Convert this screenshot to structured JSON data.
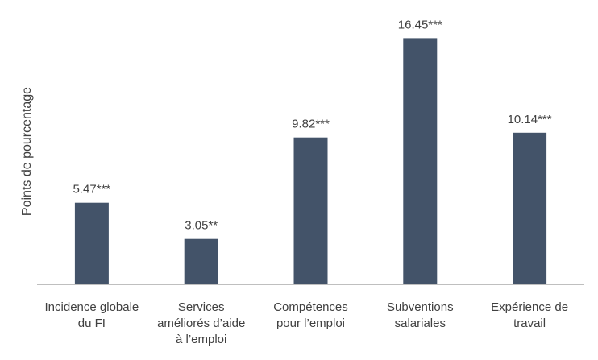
{
  "chart_data": {
    "type": "bar",
    "title": "",
    "xlabel": "",
    "ylabel": "Points de pourcentage",
    "ylim": [
      0,
      18
    ],
    "grid": false,
    "legend": "none",
    "bar_color": "#435369",
    "axis_color": "#bfbfbf",
    "text_color": "#404040",
    "categories": [
      [
        "Incidence globale",
        "du FI"
      ],
      [
        "Services",
        "améliorés d’aide",
        "à l’emploi"
      ],
      [
        "Compétences",
        "pour l’emploi"
      ],
      [
        "Subventions",
        "salariales"
      ],
      [
        "Expérience de",
        "travail"
      ]
    ],
    "values": [
      5.47,
      3.05,
      9.82,
      16.45,
      10.14
    ],
    "data_labels": [
      "5.47***",
      "3.05**",
      "9.82***",
      "16.45***",
      "10.14***"
    ]
  }
}
